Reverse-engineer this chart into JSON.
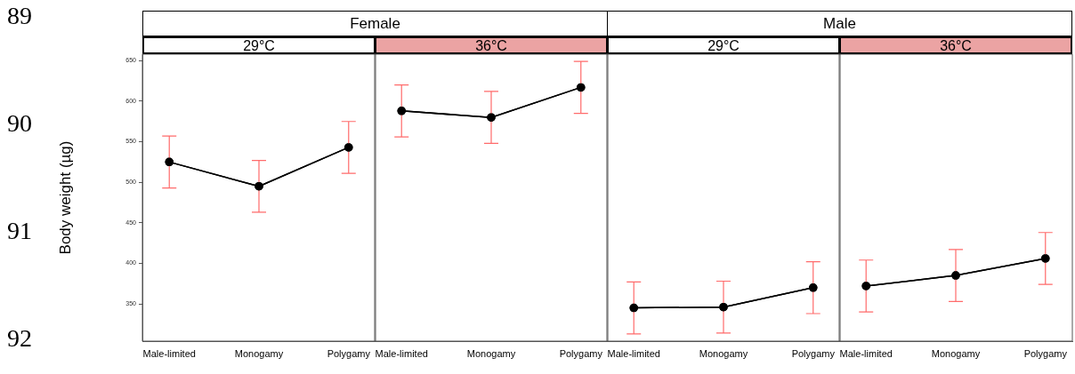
{
  "chart_data": [
    {
      "type": "line",
      "subtitle": "Female",
      "title": "29°C",
      "ylabel": "Body weight (µg)",
      "categories": [
        "Male-limited",
        "Monogamy",
        "Polygamy"
      ],
      "values": [
        525,
        495,
        543
      ],
      "errors": [
        32,
        32,
        32
      ],
      "color": "#000000",
      "marker": "circle",
      "ylim": [
        304,
        658
      ],
      "yticks": [
        350,
        400,
        450,
        500,
        550,
        600,
        650
      ],
      "grid": false,
      "legend": false,
      "annotations": [
        "89",
        "90",
        "91",
        "92"
      ]
    },
    {
      "type": "line",
      "title": "36°C",
      "categories": [
        "Male-limited",
        "Monogamy",
        "Polygamy"
      ],
      "values": [
        588,
        580,
        617
      ],
      "errors": [
        32,
        32,
        32
      ],
      "color": "#000000",
      "marker": "circle",
      "ylim": [
        304,
        658
      ],
      "yticks": [
        350,
        400,
        450,
        500,
        550,
        600,
        650
      ],
      "tick_labels": "x",
      "grid": false,
      "legend": false
    },
    {
      "type": "line",
      "subtitle": "Male",
      "title": "29°C",
      "categories": [
        "Male-limited",
        "Monogamy",
        "Polygamy"
      ],
      "values": [
        345,
        346,
        370
      ],
      "errors": [
        32,
        32,
        32
      ],
      "color": "#000000",
      "marker": "circle",
      "ylim": [
        304,
        658
      ],
      "yticks": [
        350,
        400,
        450,
        500,
        550,
        600,
        650
      ],
      "tick_labels": "x",
      "grid": false,
      "legend": false
    },
    {
      "type": "line",
      "title": "36°C",
      "categories": [
        "Male-limited",
        "Monogamy",
        "Polygamy"
      ],
      "values": [
        372,
        385,
        406
      ],
      "errors": [
        32,
        32,
        32
      ],
      "color": "#000000",
      "marker": "circle",
      "ylim": [
        304,
        658
      ],
      "yticks": [
        350,
        400,
        450,
        500,
        550,
        600,
        650
      ],
      "tick_labels": "x",
      "grid": false,
      "legend": false
    }
  ]
}
